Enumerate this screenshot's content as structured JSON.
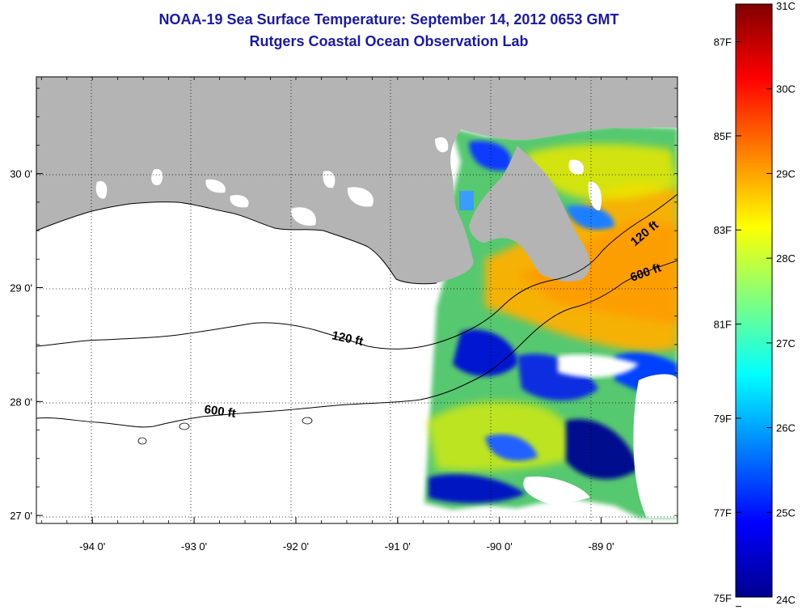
{
  "title": "NOAA-19 Sea Surface Temperature:  September 14, 2012 0653 GMT",
  "subtitle": "Rutgers Coastal Ocean Observation Lab",
  "map": {
    "lon_range": [
      -94.55,
      -88.25
    ],
    "lat_range": [
      26.93,
      30.85
    ],
    "lon_ticks": [
      {
        "value": -94,
        "label": "-94 0'"
      },
      {
        "value": -93,
        "label": "-93 0'"
      },
      {
        "value": -92,
        "label": "-92 0'"
      },
      {
        "value": -91,
        "label": "-91 0'"
      },
      {
        "value": -90,
        "label": "-90 0'"
      },
      {
        "value": -89,
        "label": "-89 0'"
      }
    ],
    "lat_ticks": [
      {
        "value": 30,
        "label": "30 0'"
      },
      {
        "value": 29,
        "label": "29 0'"
      },
      {
        "value": 28,
        "label": "28 0'"
      },
      {
        "value": 27,
        "label": "27 0'"
      }
    ],
    "contour_labels": [
      {
        "label": "120 ft",
        "lon": -91.5,
        "lat": 28.52
      },
      {
        "label": "600 ft",
        "lon": -92.75,
        "lat": 27.88
      },
      {
        "label": "120 ft",
        "lon": -88.55,
        "lat": 29.45
      },
      {
        "label": "600 ft",
        "lon": -88.55,
        "lat": 29.1
      }
    ],
    "land_color": "#b4b4b4",
    "grid": "dotted"
  },
  "colorbar": {
    "celsius": [
      {
        "value": 31,
        "label": "31C"
      },
      {
        "value": 30,
        "label": "30C"
      },
      {
        "value": 29,
        "label": "29C"
      },
      {
        "value": 28,
        "label": "28C"
      },
      {
        "value": 27,
        "label": "27C"
      },
      {
        "value": 26,
        "label": "26C"
      },
      {
        "value": 25,
        "label": "25C"
      },
      {
        "value": 24,
        "label": "24C"
      }
    ],
    "fahrenheit": [
      {
        "value": 87,
        "label": "87F"
      },
      {
        "value": 85,
        "label": "85F"
      },
      {
        "value": 83,
        "label": "83F"
      },
      {
        "value": 81,
        "label": "81F"
      },
      {
        "value": 79,
        "label": "79F"
      },
      {
        "value": 77,
        "label": "77F"
      },
      {
        "value": 75,
        "label": "75F"
      }
    ],
    "range_c": [
      24,
      31
    ],
    "colormap": "jet"
  }
}
